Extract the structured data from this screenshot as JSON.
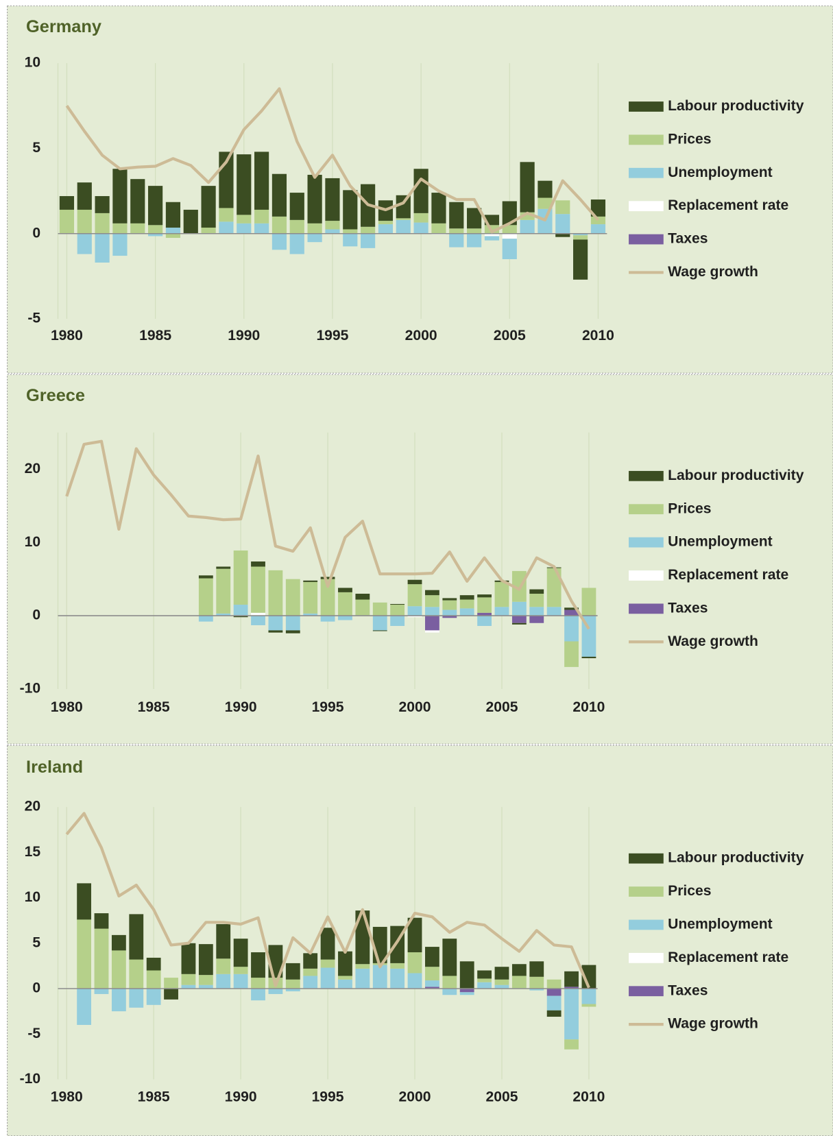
{
  "chart_data": [
    {
      "type": "bar",
      "title": "Germany",
      "x": [
        1980,
        1981,
        1982,
        1983,
        1984,
        1985,
        1986,
        1987,
        1988,
        1989,
        1990,
        1991,
        1992,
        1993,
        1994,
        1995,
        1996,
        1997,
        1998,
        1999,
        2000,
        2001,
        2002,
        2003,
        2004,
        2005,
        2006,
        2007,
        2008,
        2009,
        2010
      ],
      "xlim": [
        1979.5,
        2010.5
      ],
      "xticks": [
        1980,
        1985,
        1990,
        1995,
        2000,
        2005,
        2010
      ],
      "ylim": [
        -5,
        10
      ],
      "yticks": [
        -5,
        0,
        5,
        10
      ],
      "series": [
        {
          "name": "Labour productivity",
          "color": "#3b4d22",
          "values": [
            0.8,
            1.6,
            1.0,
            3.2,
            2.6,
            2.3,
            1.5,
            1.4,
            2.45,
            3.3,
            3.55,
            3.4,
            2.5,
            1.6,
            2.85,
            2.5,
            2.3,
            2.5,
            1.2,
            1.35,
            2.6,
            1.8,
            1.55,
            1.2,
            0.6,
            1.4,
            2.95,
            1.0,
            -0.2,
            -2.35,
            1.0
          ]
        },
        {
          "name": "Prices",
          "color": "#b5d08a",
          "values": [
            1.4,
            1.4,
            1.2,
            0.6,
            0.6,
            0.5,
            -0.25,
            0,
            0.35,
            0.8,
            0.5,
            0.8,
            1.0,
            0.8,
            0.6,
            0.5,
            0.25,
            0.4,
            0.2,
            0.1,
            0.55,
            0.6,
            0.3,
            0.3,
            0.5,
            0.5,
            0.45,
            0.65,
            0.8,
            -0.25,
            0.45
          ]
        },
        {
          "name": "Unemployment",
          "color": "#93cddd",
          "values": [
            0,
            -1.2,
            -1.7,
            -1.3,
            0,
            -0.15,
            0.35,
            0,
            0,
            0.7,
            0.6,
            0.6,
            -0.95,
            -1.2,
            -0.5,
            0.25,
            -0.75,
            -0.85,
            0.55,
            0.8,
            0.65,
            0,
            -0.8,
            -0.8,
            -0.25,
            -1.2,
            0.8,
            1.45,
            1.15,
            -0.1,
            0.55
          ]
        },
        {
          "name": "Replacement rate",
          "color": "#ffffff",
          "values": [
            0,
            0,
            0,
            0,
            0,
            0,
            0,
            0,
            0,
            0,
            0,
            0,
            0,
            0,
            0,
            0,
            0,
            0,
            0,
            0,
            0,
            -0.05,
            0,
            0,
            -0.15,
            -0.3,
            0,
            0,
            0,
            0,
            0
          ]
        },
        {
          "name": "Taxes",
          "color": "#7a5fa0",
          "values": [
            0,
            0,
            0,
            0,
            0,
            0,
            0,
            0,
            0,
            0,
            0,
            0,
            0,
            0,
            0,
            0,
            0,
            0,
            0,
            0,
            0,
            0,
            0,
            0,
            0,
            0,
            0,
            0,
            0,
            0,
            0
          ]
        },
        {
          "name": "Wage growth",
          "type": "line",
          "color": "#cdbb96",
          "values": [
            7.5,
            6.0,
            4.6,
            3.8,
            3.9,
            3.95,
            4.4,
            4.0,
            3.0,
            4.2,
            6.1,
            7.2,
            8.5,
            5.4,
            3.3,
            4.6,
            2.8,
            1.7,
            1.4,
            1.8,
            3.2,
            2.5,
            2.0,
            2.0,
            0.1,
            0.6,
            1.2,
            0.8,
            3.1,
            2.0,
            0.8
          ]
        }
      ]
    },
    {
      "type": "bar",
      "title": "Greece",
      "x": [
        1980,
        1981,
        1982,
        1983,
        1984,
        1985,
        1986,
        1987,
        1988,
        1989,
        1990,
        1991,
        1992,
        1993,
        1994,
        1995,
        1996,
        1997,
        1998,
        1999,
        2000,
        2001,
        2002,
        2003,
        2004,
        2005,
        2006,
        2007,
        2008,
        2009,
        2010
      ],
      "xlim": [
        1979.5,
        2010.5
      ],
      "xticks": [
        1980,
        1985,
        1990,
        1995,
        2000,
        2005,
        2010
      ],
      "ylim": [
        -10,
        25
      ],
      "yticks": [
        -10,
        0,
        10,
        20
      ],
      "series": [
        {
          "name": "Labour productivity",
          "color": "#3b4d22",
          "values": [
            null,
            null,
            null,
            null,
            null,
            null,
            null,
            null,
            0.4,
            0.3,
            -0.2,
            0.7,
            -0.3,
            -0.4,
            0.2,
            0.3,
            0.6,
            0.8,
            -0.1,
            0.1,
            0.6,
            0.7,
            0.3,
            0.6,
            0.4,
            0.2,
            -0.2,
            0.6,
            0.1,
            0.3,
            -0.2
          ]
        },
        {
          "name": "Prices",
          "color": "#b5d08a",
          "values": [
            null,
            null,
            null,
            null,
            null,
            null,
            null,
            null,
            5.1,
            6.1,
            7.4,
            6.3,
            6.2,
            5.0,
            4.3,
            5.0,
            3.2,
            2.2,
            1.8,
            1.5,
            3.0,
            1.6,
            1.3,
            1.2,
            2.1,
            3.4,
            4.2,
            1.8,
            5.3,
            -3.5,
            3.8
          ]
        },
        {
          "name": "Unemployment",
          "color": "#93cddd",
          "values": [
            null,
            null,
            null,
            null,
            null,
            null,
            null,
            null,
            -0.8,
            0.3,
            1.5,
            -1.3,
            -2.0,
            -2.0,
            0.3,
            -0.8,
            -0.6,
            0,
            -2.0,
            -1.4,
            1.3,
            1.2,
            0.8,
            1.0,
            -1.4,
            1.2,
            1.9,
            1.2,
            1.2,
            -3.5,
            -5.6
          ]
        },
        {
          "name": "Replacement rate",
          "color": "#ffffff",
          "values": [
            null,
            null,
            null,
            null,
            null,
            null,
            null,
            null,
            0,
            0,
            0,
            0.4,
            0,
            0,
            0,
            0,
            0,
            0,
            0,
            0,
            -0.2,
            -0.3,
            0,
            0,
            0,
            0,
            0,
            0,
            0,
            0,
            0
          ]
        },
        {
          "name": "Taxes",
          "color": "#7a5fa0",
          "values": [
            null,
            null,
            null,
            null,
            null,
            null,
            null,
            null,
            0,
            0,
            0,
            0,
            0,
            0,
            0,
            0,
            0,
            0,
            0,
            0,
            0,
            -2.0,
            -0.3,
            0,
            0.4,
            0,
            -1.0,
            -1.0,
            0,
            0.8,
            0
          ]
        },
        {
          "name": "Wage growth",
          "type": "line",
          "color": "#cdbb96",
          "values": [
            16.3,
            23.4,
            23.8,
            11.8,
            22.8,
            19.2,
            16.5,
            13.6,
            13.4,
            13.1,
            13.2,
            21.8,
            9.5,
            8.8,
            12.0,
            4.0,
            10.7,
            12.9,
            5.7,
            5.7,
            5.7,
            5.8,
            8.7,
            4.7,
            7.9,
            4.8,
            3.6,
            7.9,
            6.7,
            2.0,
            -1.8
          ]
        }
      ]
    },
    {
      "type": "bar",
      "title": "Ireland",
      "x": [
        1980,
        1981,
        1982,
        1983,
        1984,
        1985,
        1986,
        1987,
        1988,
        1989,
        1990,
        1991,
        1992,
        1993,
        1994,
        1995,
        1996,
        1997,
        1998,
        1999,
        2000,
        2001,
        2002,
        2003,
        2004,
        2005,
        2006,
        2007,
        2008,
        2009,
        2010
      ],
      "xlim": [
        1979.5,
        2010.5
      ],
      "xticks": [
        1980,
        1985,
        1990,
        1995,
        2000,
        2005,
        2010
      ],
      "ylim": [
        -10,
        20
      ],
      "yticks": [
        -10,
        -5,
        0,
        5,
        10,
        15,
        20
      ],
      "series": [
        {
          "name": "Labour productivity",
          "color": "#3b4d22",
          "values": [
            null,
            4.0,
            1.7,
            1.7,
            5.0,
            1.4,
            -1.2,
            3.4,
            3.4,
            3.8,
            3.1,
            2.8,
            3.6,
            1.8,
            1.7,
            3.5,
            2.7,
            5.9,
            4.0,
            4.1,
            3.8,
            2.2,
            4.1,
            3.0,
            0.9,
            1.4,
            1.3,
            1.7,
            -0.7,
            1.7,
            2.6
          ]
        },
        {
          "name": "Prices",
          "color": "#b5d08a",
          "values": [
            null,
            7.6,
            6.6,
            4.2,
            3.2,
            2.0,
            1.2,
            1.2,
            1.1,
            1.7,
            0.8,
            1.2,
            1.2,
            1.0,
            0.8,
            0.9,
            0.4,
            0.5,
            0.2,
            0.6,
            2.3,
            1.5,
            1.4,
            0,
            0.4,
            0.6,
            1.4,
            1.3,
            1.0,
            -1.1,
            -0.3
          ]
        },
        {
          "name": "Unemployment",
          "color": "#93cddd",
          "values": [
            null,
            -4.0,
            -0.6,
            -2.5,
            -2.1,
            -1.8,
            0,
            0.4,
            0.4,
            1.6,
            1.6,
            -1.3,
            -0.6,
            -0.3,
            1.4,
            2.3,
            1.0,
            2.2,
            2.6,
            2.2,
            1.7,
            0.7,
            -0.7,
            -0.3,
            0.7,
            0.4,
            0,
            -0.2,
            -1.6,
            -5.6,
            -1.7
          ]
        },
        {
          "name": "Replacement rate",
          "color": "#ffffff",
          "values": [
            null,
            0,
            0,
            0,
            0,
            0,
            0,
            0,
            0,
            0,
            0,
            0,
            0,
            0,
            0,
            0,
            0,
            0,
            0,
            0,
            0,
            0,
            0,
            0,
            0,
            0,
            0,
            0,
            0,
            0,
            0
          ]
        },
        {
          "name": "Taxes",
          "color": "#7a5fa0",
          "values": [
            null,
            0,
            0,
            0,
            0,
            0,
            0,
            0,
            0,
            0,
            0,
            0,
            0,
            0,
            0,
            0,
            0,
            0,
            0,
            0,
            0,
            0.2,
            0,
            -0.4,
            0,
            0,
            0,
            0,
            -0.8,
            0.2,
            0
          ]
        },
        {
          "name": "Wage growth",
          "type": "line",
          "color": "#cdbb96",
          "values": [
            17.0,
            19.3,
            15.5,
            10.2,
            11.4,
            8.7,
            4.8,
            5.0,
            7.3,
            7.3,
            7.1,
            7.8,
            0.3,
            5.6,
            3.9,
            7.9,
            4.0,
            8.7,
            2.4,
            5.2,
            8.3,
            7.9,
            6.2,
            7.3,
            7.0,
            5.5,
            4.1,
            6.4,
            4.8,
            4.6,
            0.1
          ]
        }
      ]
    }
  ]
}
